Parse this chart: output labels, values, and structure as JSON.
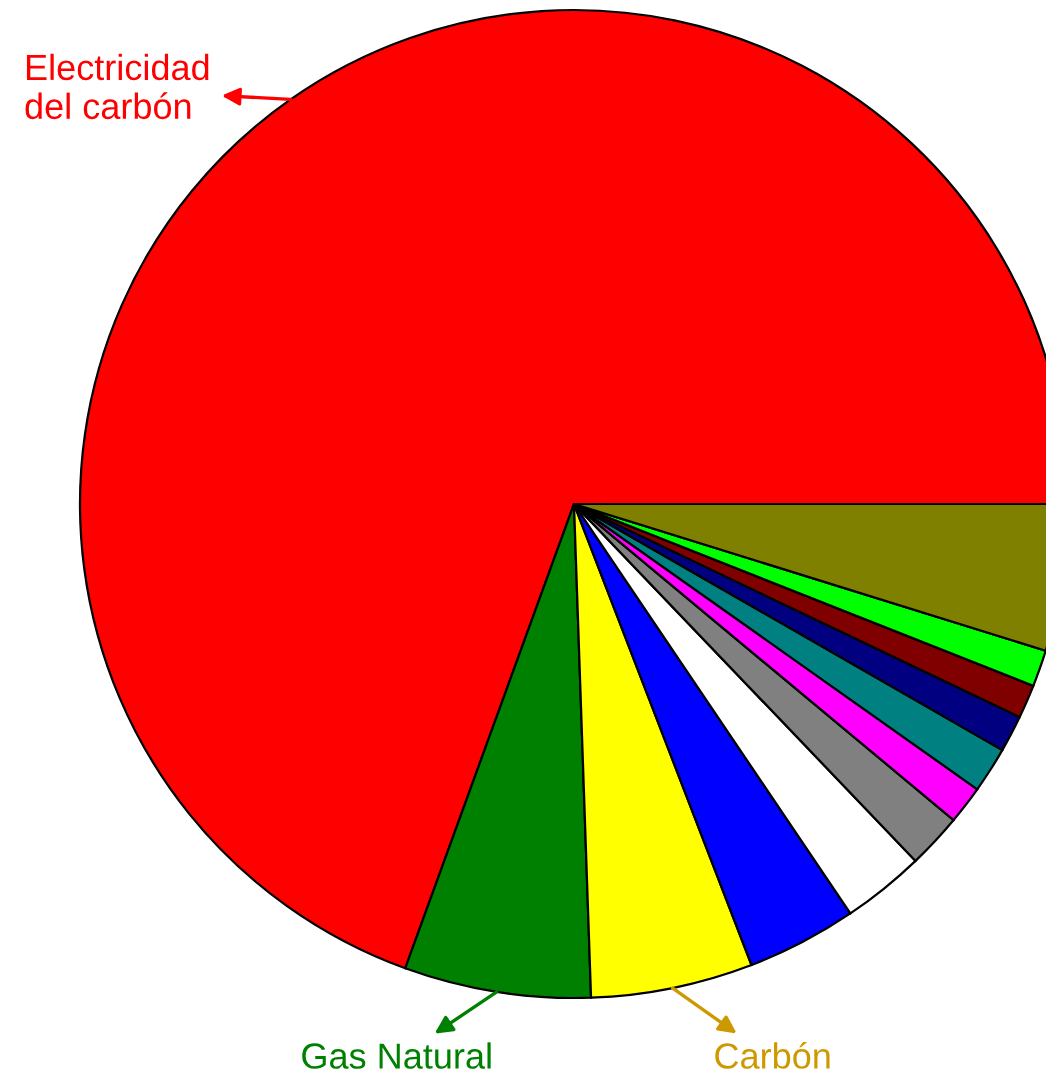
{
  "chart_data": {
    "type": "pie",
    "categories": [
      "Electricidad\ndel carbón",
      "Gas Natural",
      "Carbón",
      null,
      null,
      null,
      null,
      null,
      null,
      null,
      null,
      null
    ],
    "values": [
      69.45,
      6.1,
      5.3,
      3.6,
      2.7,
      1.8,
      1.25,
      1.5,
      1.2,
      1.1,
      1.2,
      4.8
    ],
    "colors": [
      "#ff0000",
      "#008000",
      "#ffff00",
      "#0000ff",
      "#ffffff",
      "#808080",
      "#ff00ff",
      "#008080",
      "#000080",
      "#800000",
      "#00ff00",
      "#808000"
    ]
  }
}
